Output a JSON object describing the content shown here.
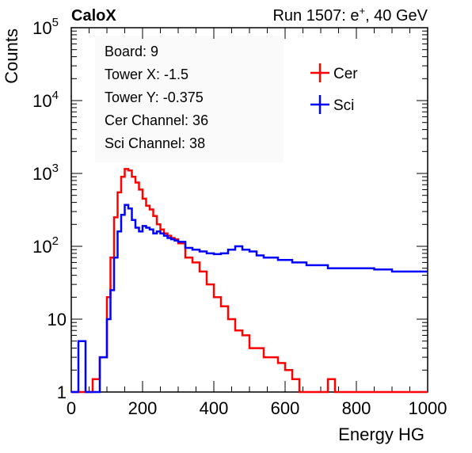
{
  "header": {
    "left": "CaloX",
    "right_prefix": "Run 1507: e",
    "right_sup": "+",
    "right_suffix": ", 40 GeV"
  },
  "info_box": {
    "lines": [
      "Board: 9",
      "Tower X: -1.5",
      "Tower Y: -0.375",
      "Cer Channel: 36",
      "Sci Channel: 38"
    ]
  },
  "legend": [
    {
      "label": "Cer",
      "color": "#ff0000"
    },
    {
      "label": "Sci",
      "color": "#0000ff"
    }
  ],
  "chart_data": {
    "type": "line",
    "title": "",
    "xlabel": "Energy HG",
    "ylabel": "Counts",
    "xlim": [
      0,
      1000
    ],
    "ylim": [
      1,
      100000
    ],
    "yscale": "log",
    "grid": false,
    "legend_position": "top-right",
    "x_ticks": [
      0,
      200,
      400,
      600,
      800,
      1000
    ],
    "x_tick_labels": [
      "0",
      "200",
      "400",
      "600",
      "800",
      "1000"
    ],
    "y_ticks": [
      1,
      10,
      100,
      1000,
      10000,
      100000
    ],
    "y_tick_labels": [
      {
        "base": "1",
        "exp": ""
      },
      {
        "base": "10",
        "exp": ""
      },
      {
        "base": "10",
        "exp": "2"
      },
      {
        "base": "10",
        "exp": "3"
      },
      {
        "base": "10",
        "exp": "4"
      },
      {
        "base": "10",
        "exp": "5"
      }
    ],
    "x": [
      0,
      20,
      40,
      60,
      80,
      100,
      110,
      120,
      130,
      140,
      150,
      160,
      170,
      180,
      190,
      200,
      210,
      220,
      230,
      240,
      250,
      260,
      270,
      280,
      290,
      300,
      320,
      340,
      360,
      380,
      400,
      420,
      440,
      460,
      480,
      500,
      520,
      540,
      560,
      580,
      600,
      620,
      640,
      660,
      680,
      700,
      720,
      740,
      760,
      780,
      800,
      850,
      900,
      950,
      1000
    ],
    "series": [
      {
        "name": "Cer",
        "color": "#ff0000",
        "values": [
          1,
          1,
          1,
          1.5,
          3,
          20,
          70,
          250,
          550,
          900,
          1150,
          1100,
          900,
          750,
          600,
          450,
          360,
          320,
          260,
          200,
          170,
          150,
          140,
          130,
          125,
          110,
          70,
          60,
          45,
          30,
          20,
          15,
          10,
          7,
          6,
          4,
          4,
          3,
          3,
          2.5,
          2,
          1.5,
          1,
          1,
          1,
          1,
          1.5,
          1,
          1,
          1,
          1,
          1,
          1,
          1,
          1
        ]
      },
      {
        "name": "Sci",
        "color": "#0000ff",
        "values": [
          1,
          5,
          1,
          1,
          3,
          10,
          25,
          70,
          160,
          270,
          370,
          330,
          230,
          180,
          160,
          190,
          180,
          170,
          150,
          160,
          150,
          140,
          130,
          125,
          120,
          115,
          95,
          90,
          85,
          80,
          78,
          80,
          90,
          100,
          90,
          85,
          75,
          70,
          70,
          65,
          65,
          60,
          60,
          55,
          55,
          55,
          50,
          50,
          50,
          50,
          50,
          48,
          45,
          45,
          45
        ]
      }
    ]
  }
}
